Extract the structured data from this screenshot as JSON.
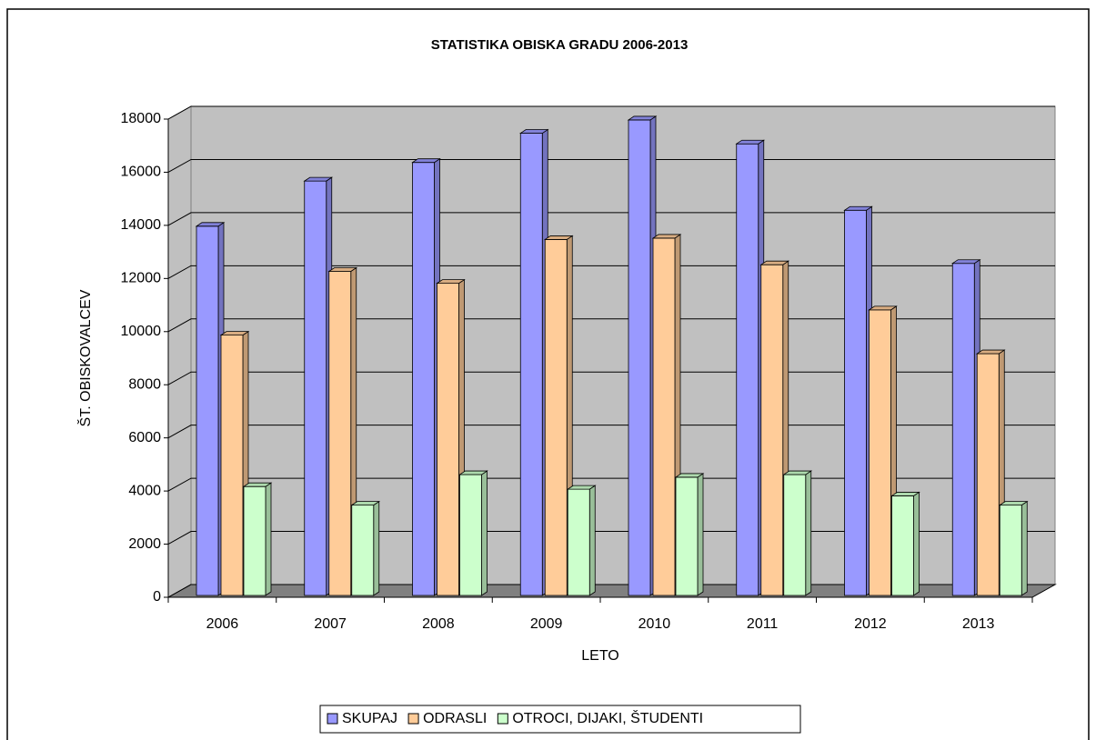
{
  "chart_data": {
    "type": "bar3d",
    "title": "STATISTIKA OBISKA GRADU  2006-2013",
    "x_label": "LETO",
    "y_label": "ŠT. OBISKOVALCEV",
    "categories": [
      "2006",
      "2007",
      "2008",
      "2009",
      "2010",
      "2011",
      "2012",
      "2013"
    ],
    "series": [
      {
        "name": "SKUPAJ",
        "color": "#9999ff",
        "values": [
          13900,
          15600,
          16300,
          17400,
          17900,
          17000,
          14500,
          12500
        ]
      },
      {
        "name": "ODRASLI",
        "color": "#ffcc99",
        "values": [
          9800,
          12200,
          11750,
          13400,
          13450,
          12450,
          10750,
          9100
        ]
      },
      {
        "name": "OTROCI, DIJAKI, ŠTUDENTI",
        "color": "#ccffcc",
        "values": [
          4100,
          3400,
          4550,
          4000,
          4450,
          4550,
          3750,
          3400
        ]
      }
    ],
    "ylim": [
      0,
      18000
    ],
    "yticks": [
      0,
      2000,
      4000,
      6000,
      8000,
      10000,
      12000,
      14000,
      16000,
      18000
    ],
    "grid": true
  }
}
